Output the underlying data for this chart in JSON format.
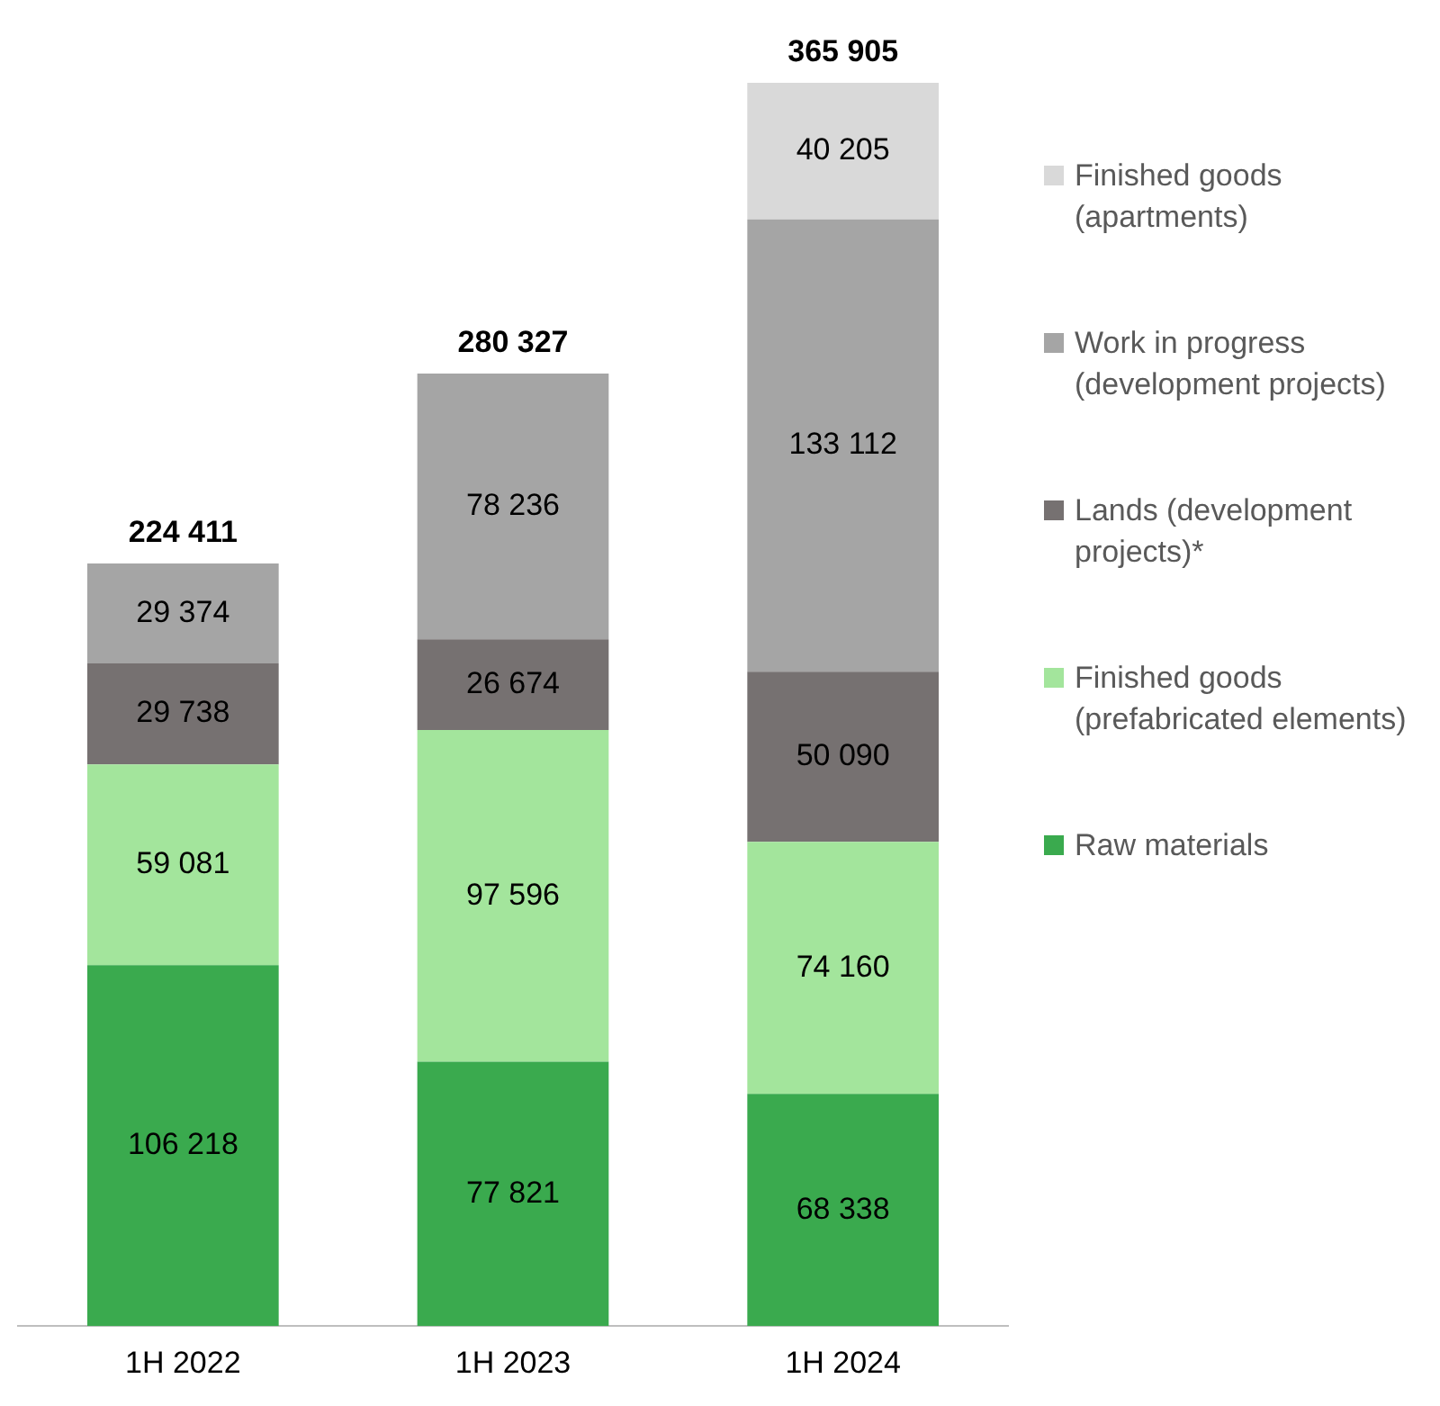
{
  "chart_data": {
    "type": "bar",
    "stacked": true,
    "legend": "right",
    "categories": [
      "1H 2022",
      "1H 2023",
      "1H 2024"
    ],
    "series": [
      {
        "name": "Raw materials",
        "color": "#3aaa4e",
        "values": [
          106218,
          77821,
          68338
        ],
        "value_labels": [
          "106 218",
          "77 821",
          "68 338"
        ]
      },
      {
        "name": "Finished goods (prefabricated elements)",
        "color": "#a3e59c",
        "values": [
          59081,
          97596,
          74160
        ],
        "value_labels": [
          "59 081",
          "97 596",
          "74 160"
        ]
      },
      {
        "name": "Lands (development projects)*",
        "color": "#767171",
        "values": [
          29738,
          26674,
          50090
        ],
        "value_labels": [
          "29 738",
          "26 674",
          "50 090"
        ]
      },
      {
        "name": "Work in progress (development projects)",
        "color": "#a5a5a5",
        "values": [
          29374,
          78236,
          133112
        ],
        "value_labels": [
          "29 374",
          "78 236",
          "133 112"
        ]
      },
      {
        "name": "Finished goods (apartments)",
        "color": "#d9d9d9",
        "values": [
          null,
          null,
          40205
        ],
        "value_labels": [
          null,
          null,
          "40 205"
        ]
      }
    ],
    "totals": [
      "224 411",
      "280 327",
      "365 905"
    ]
  }
}
